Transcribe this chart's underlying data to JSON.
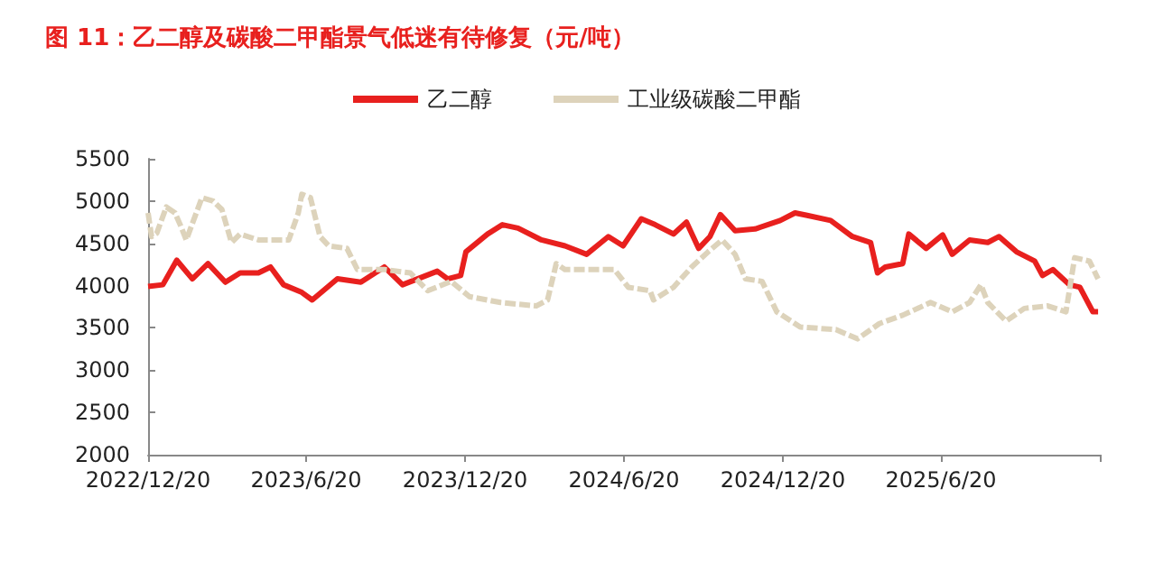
{
  "chart_data": {
    "type": "line",
    "title": "图 11：乙二醇及碳酸二甲酯景气低迷有待修复（元/吨）",
    "legend": "top",
    "grid": false,
    "marker": "none",
    "xlim": [
      "2022-12-20",
      "2025-12-20"
    ],
    "xticks": [
      {
        "value": "2022-12-20",
        "label": "2022/12/20"
      },
      {
        "value": "2023-06-20",
        "label": "2023/6/20"
      },
      {
        "value": "2023-12-20",
        "label": "2023/12/20"
      },
      {
        "value": "2024-06-20",
        "label": "2024/6/20"
      },
      {
        "value": "2024-12-20",
        "label": "2024/12/20"
      },
      {
        "value": "2025-06-20",
        "label": "2025/6/20"
      },
      {
        "value": "2025-12-20",
        "label": null
      }
    ],
    "ylim": [
      2000,
      5500
    ],
    "yticks": [
      2000,
      2500,
      3000,
      3500,
      4000,
      4500,
      5000,
      5500
    ],
    "series": [
      {
        "name": "乙二醇",
        "color": "#e8201e",
        "line_style": "solid",
        "x": [
          "2022-12-20",
          "2023-01-06",
          "2023-01-22",
          "2023-02-09",
          "2023-02-27",
          "2023-03-19",
          "2023-04-05",
          "2023-04-26",
          "2023-05-10",
          "2023-05-25",
          "2023-06-15",
          "2023-06-27",
          "2023-07-26",
          "2023-08-22",
          "2023-09-18",
          "2023-10-09",
          "2023-11-18",
          "2023-11-30",
          "2023-12-15",
          "2023-12-21",
          "2024-01-15",
          "2024-02-01",
          "2024-02-19",
          "2024-03-17",
          "2024-04-13",
          "2024-05-08",
          "2024-06-02",
          "2024-06-19",
          "2024-07-10",
          "2024-07-26",
          "2024-08-16",
          "2024-08-31",
          "2024-09-14",
          "2024-09-27",
          "2024-10-09",
          "2024-10-26",
          "2024-11-18",
          "2024-12-17",
          "2025-01-03",
          "2025-01-17",
          "2025-02-13",
          "2025-03-10",
          "2025-03-31",
          "2025-04-08",
          "2025-04-17",
          "2025-05-07",
          "2025-05-14",
          "2025-06-03",
          "2025-06-22",
          "2025-07-03",
          "2025-07-23",
          "2025-08-13",
          "2025-08-26",
          "2025-09-15",
          "2025-10-06",
          "2025-10-15",
          "2025-10-27",
          "2025-11-15",
          "2025-11-27",
          "2025-12-12",
          "2025-12-18"
        ],
        "values": [
          3990,
          4010,
          4300,
          4080,
          4260,
          4040,
          4150,
          4150,
          4220,
          4010,
          3920,
          3830,
          4080,
          4040,
          4220,
          4010,
          4170,
          4080,
          4120,
          4400,
          4610,
          4720,
          4680,
          4540,
          4470,
          4370,
          4580,
          4470,
          4790,
          4720,
          4610,
          4750,
          4440,
          4580,
          4840,
          4650,
          4670,
          4770,
          4860,
          4830,
          4770,
          4580,
          4510,
          4150,
          4220,
          4260,
          4610,
          4440,
          4600,
          4370,
          4540,
          4510,
          4580,
          4400,
          4290,
          4120,
          4190,
          4010,
          3980,
          3690,
          3690
        ]
      },
      {
        "name": "工业级碳酸二甲酯",
        "color": "#ddd3bb",
        "line_style": "dashed",
        "x": [
          "2022-12-20",
          "2022-12-24",
          "2022-12-30",
          "2023-01-10",
          "2023-01-20",
          "2023-01-26",
          "2023-02-02",
          "2023-02-20",
          "2023-03-05",
          "2023-03-15",
          "2023-03-26",
          "2023-04-05",
          "2023-04-26",
          "2023-05-31",
          "2023-06-11",
          "2023-06-15",
          "2023-06-25",
          "2023-07-06",
          "2023-07-16",
          "2023-08-06",
          "2023-08-18",
          "2023-09-18",
          "2023-10-18",
          "2023-11-07",
          "2023-12-04",
          "2023-12-25",
          "2024-01-30",
          "2024-03-11",
          "2024-03-24",
          "2024-04-03",
          "2024-04-13",
          "2024-06-09",
          "2024-06-25",
          "2024-07-20",
          "2024-07-24",
          "2024-08-16",
          "2024-09-06",
          "2024-09-25",
          "2024-10-11",
          "2024-10-26",
          "2024-11-07",
          "2024-11-26",
          "2024-12-13",
          "2025-01-09",
          "2025-02-19",
          "2025-03-16",
          "2025-04-10",
          "2025-05-07",
          "2025-06-08",
          "2025-07-03",
          "2025-07-23",
          "2025-08-05",
          "2025-08-13",
          "2025-09-03",
          "2025-09-24",
          "2025-10-21",
          "2025-11-11",
          "2025-11-21",
          "2025-12-08",
          "2025-12-18"
        ],
        "values": [
          4860,
          4580,
          4620,
          4930,
          4860,
          4720,
          4540,
          5040,
          5000,
          4900,
          4510,
          4610,
          4540,
          4540,
          4860,
          5080,
          5040,
          4580,
          4470,
          4440,
          4190,
          4190,
          4150,
          3940,
          4050,
          3870,
          3800,
          3760,
          3830,
          4260,
          4190,
          4190,
          3980,
          3940,
          3830,
          3980,
          4220,
          4400,
          4540,
          4370,
          4080,
          4050,
          3690,
          3510,
          3480,
          3370,
          3550,
          3650,
          3800,
          3690,
          3800,
          4010,
          3800,
          3580,
          3730,
          3760,
          3690,
          4330,
          4290,
          4080
        ]
      }
    ]
  }
}
